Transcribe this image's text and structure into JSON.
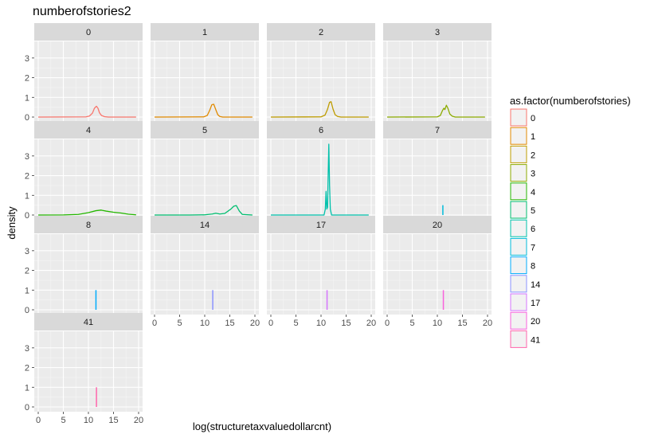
{
  "chart_data": {
    "type": "line",
    "title": "numberofstories2",
    "xlabel": "log(structuretaxvaluedollarcnt)",
    "ylabel": "density",
    "xlim": [
      0,
      20
    ],
    "ylim": [
      0,
      3.6
    ],
    "x_ticks": [
      "0",
      "5",
      "10",
      "15",
      "20"
    ],
    "y_ticks": [
      "0",
      "1",
      "2",
      "3"
    ],
    "grid": true,
    "legend": {
      "title": "as.factor(numberofstories)",
      "position": "right",
      "entries": [
        "0",
        "1",
        "2",
        "3",
        "4",
        "5",
        "6",
        "7",
        "8",
        "14",
        "17",
        "20",
        "41"
      ]
    },
    "series": [
      {
        "name": "0",
        "color": "#F8766D",
        "x": [
          0,
          9.5,
          10.2,
          10.8,
          11.2,
          11.6,
          11.9,
          12.2,
          12.6,
          13.2,
          14,
          19.5
        ],
        "y": [
          0,
          0.01,
          0.05,
          0.2,
          0.45,
          0.55,
          0.45,
          0.22,
          0.08,
          0.02,
          0,
          0
        ]
      },
      {
        "name": "1",
        "color": "#E18A00",
        "x": [
          0,
          9.8,
          10.5,
          11.0,
          11.4,
          11.8,
          12.2,
          12.6,
          13.0,
          13.6,
          19.5
        ],
        "y": [
          0,
          0.01,
          0.08,
          0.35,
          0.62,
          0.65,
          0.38,
          0.12,
          0.03,
          0,
          0
        ]
      },
      {
        "name": "2",
        "color": "#BE9C00",
        "x": [
          0,
          10.0,
          10.8,
          11.3,
          11.7,
          12.0,
          12.4,
          12.8,
          13.3,
          14,
          19.5
        ],
        "y": [
          0,
          0.01,
          0.1,
          0.4,
          0.75,
          0.78,
          0.4,
          0.12,
          0.03,
          0,
          0
        ]
      },
      {
        "name": "3",
        "color": "#8CAB00",
        "x": [
          0,
          10.0,
          10.6,
          11.0,
          11.3,
          11.5,
          11.8,
          12.1,
          12.5,
          13.0,
          13.6,
          19.5
        ],
        "y": [
          0,
          0.01,
          0.08,
          0.32,
          0.45,
          0.38,
          0.6,
          0.45,
          0.15,
          0.04,
          0,
          0
        ]
      },
      {
        "name": "4",
        "color": "#24B700",
        "x": [
          0,
          5,
          8,
          10,
          11.5,
          12.5,
          13.5,
          15,
          16.5,
          18,
          19.5
        ],
        "y": [
          0,
          0.005,
          0.03,
          0.12,
          0.22,
          0.25,
          0.2,
          0.14,
          0.1,
          0.04,
          0.01
        ]
      },
      {
        "name": "5",
        "color": "#00BE70",
        "x": [
          0,
          7,
          10,
          11.5,
          12.2,
          13.0,
          14.0,
          15.2,
          15.8,
          16.3,
          16.9,
          17.5,
          19.5
        ],
        "y": [
          0,
          0,
          0.01,
          0.05,
          0.09,
          0.05,
          0.08,
          0.3,
          0.45,
          0.48,
          0.2,
          0.03,
          0
        ]
      },
      {
        "name": "6",
        "color": "#00C1AB",
        "x": [
          0,
          10.6,
          10.85,
          11.0,
          11.15,
          11.3,
          11.42,
          11.55,
          11.7,
          11.85,
          12.1,
          19.5
        ],
        "y": [
          0,
          0,
          0.3,
          1.2,
          0.3,
          0.4,
          2.0,
          3.6,
          1.5,
          0.3,
          0,
          0
        ]
      },
      {
        "name": "7",
        "color": "#00BBDA",
        "spike": true,
        "x": [
          11.1
        ],
        "y": [
          0.5
        ]
      },
      {
        "name": "8",
        "color": "#00ACFC",
        "spike": true,
        "x": [
          11.5
        ],
        "y": [
          1.0
        ]
      },
      {
        "name": "14",
        "color": "#8B93FF",
        "spike": true,
        "x": [
          11.6
        ],
        "y": [
          1.0
        ]
      },
      {
        "name": "17",
        "color": "#D575FE",
        "spike": true,
        "x": [
          11.2
        ],
        "y": [
          1.0
        ]
      },
      {
        "name": "20",
        "color": "#F962DD",
        "spike": true,
        "x": [
          11.2
        ],
        "y": [
          1.0
        ]
      },
      {
        "name": "41",
        "color": "#FF65AC",
        "spike": true,
        "x": [
          11.6
        ],
        "y": [
          1.0
        ]
      }
    ]
  }
}
